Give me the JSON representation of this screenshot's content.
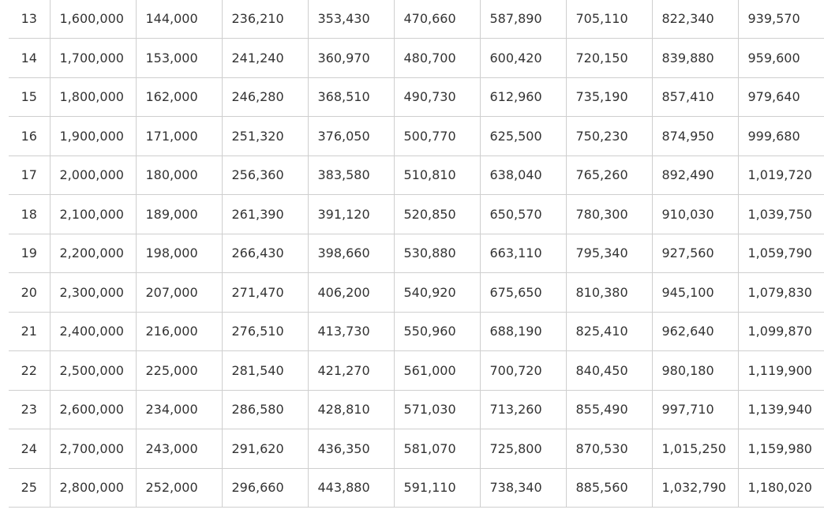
{
  "table": {
    "rows": [
      [
        "13",
        "1,600,000",
        "144,000",
        "236,210",
        "353,430",
        "470,660",
        "587,890",
        "705,110",
        "822,340",
        "939,570"
      ],
      [
        "14",
        "1,700,000",
        "153,000",
        "241,240",
        "360,970",
        "480,700",
        "600,420",
        "720,150",
        "839,880",
        "959,600"
      ],
      [
        "15",
        "1,800,000",
        "162,000",
        "246,280",
        "368,510",
        "490,730",
        "612,960",
        "735,190",
        "857,410",
        "979,640"
      ],
      [
        "16",
        "1,900,000",
        "171,000",
        "251,320",
        "376,050",
        "500,770",
        "625,500",
        "750,230",
        "874,950",
        "999,680"
      ],
      [
        "17",
        "2,000,000",
        "180,000",
        "256,360",
        "383,580",
        "510,810",
        "638,040",
        "765,260",
        "892,490",
        "1,019,720"
      ],
      [
        "18",
        "2,100,000",
        "189,000",
        "261,390",
        "391,120",
        "520,850",
        "650,570",
        "780,300",
        "910,030",
        "1,039,750"
      ],
      [
        "19",
        "2,200,000",
        "198,000",
        "266,430",
        "398,660",
        "530,880",
        "663,110",
        "795,340",
        "927,560",
        "1,059,790"
      ],
      [
        "20",
        "2,300,000",
        "207,000",
        "271,470",
        "406,200",
        "540,920",
        "675,650",
        "810,380",
        "945,100",
        "1,079,830"
      ],
      [
        "21",
        "2,400,000",
        "216,000",
        "276,510",
        "413,730",
        "550,960",
        "688,190",
        "825,410",
        "962,640",
        "1,099,870"
      ],
      [
        "22",
        "2,500,000",
        "225,000",
        "281,540",
        "421,270",
        "561,000",
        "700,720",
        "840,450",
        "980,180",
        "1,119,900"
      ],
      [
        "23",
        "2,600,000",
        "234,000",
        "286,580",
        "428,810",
        "571,030",
        "713,260",
        "855,490",
        "997,710",
        "1,139,940"
      ],
      [
        "24",
        "2,700,000",
        "243,000",
        "291,620",
        "436,350",
        "581,070",
        "725,800",
        "870,530",
        "1,015,250",
        "1,159,980"
      ],
      [
        "25",
        "2,800,000",
        "252,000",
        "296,660",
        "443,880",
        "591,110",
        "738,340",
        "885,560",
        "1,032,790",
        "1,180,020"
      ]
    ]
  }
}
